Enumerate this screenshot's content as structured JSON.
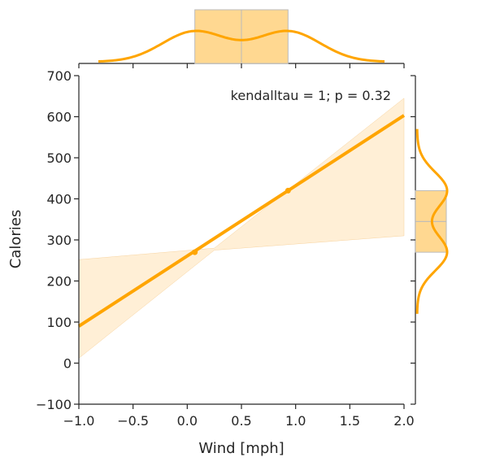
{
  "chart_data": {
    "type": "scatter",
    "subtype": "jointplot-regression",
    "color": "#FFA500",
    "fill_color": "#FFD891",
    "band_color": "#FFEFD6",
    "xlabel": "Wind [mph]",
    "ylabel": "Calories",
    "xlim": [
      -1.0,
      2.0
    ],
    "ylim": [
      -100,
      700
    ],
    "xticks": [
      -1.0,
      -0.5,
      0.0,
      0.5,
      1.0,
      1.5,
      2.0
    ],
    "xtick_labels": [
      "−1.0",
      "−0.5",
      "0.0",
      "0.5",
      "1.0",
      "1.5",
      "2.0"
    ],
    "yticks": [
      -100,
      0,
      100,
      200,
      300,
      400,
      500,
      600,
      700
    ],
    "ytick_labels": [
      "−100",
      "0",
      "100",
      "200",
      "300",
      "400",
      "500",
      "600",
      "700"
    ],
    "annotation": "kendalltau = 1; p = 0.32",
    "points": [
      {
        "x": 0.07,
        "y": 270
      },
      {
        "x": 0.93,
        "y": 420
      }
    ],
    "regression": {
      "x": [
        -1.0,
        2.0
      ],
      "y": [
        90,
        603
      ]
    },
    "confidence_band": {
      "upper": [
        [
          -1.0,
          252
        ],
        [
          0.25,
          280
        ],
        [
          2.0,
          645
        ]
      ],
      "lower": [
        [
          -1.0,
          12
        ],
        [
          0.25,
          275
        ],
        [
          2.0,
          310
        ]
      ]
    },
    "marginal_x": {
      "hist_bins": [
        0.07,
        0.5,
        0.93
      ],
      "hist_counts": [
        1,
        1
      ],
      "kde_range": [
        -0.82,
        1.82
      ]
    },
    "marginal_y": {
      "hist_bins": [
        270,
        345,
        420
      ],
      "hist_counts": [
        1,
        1
      ],
      "kde_range": [
        120,
        570
      ]
    },
    "grid": false
  }
}
